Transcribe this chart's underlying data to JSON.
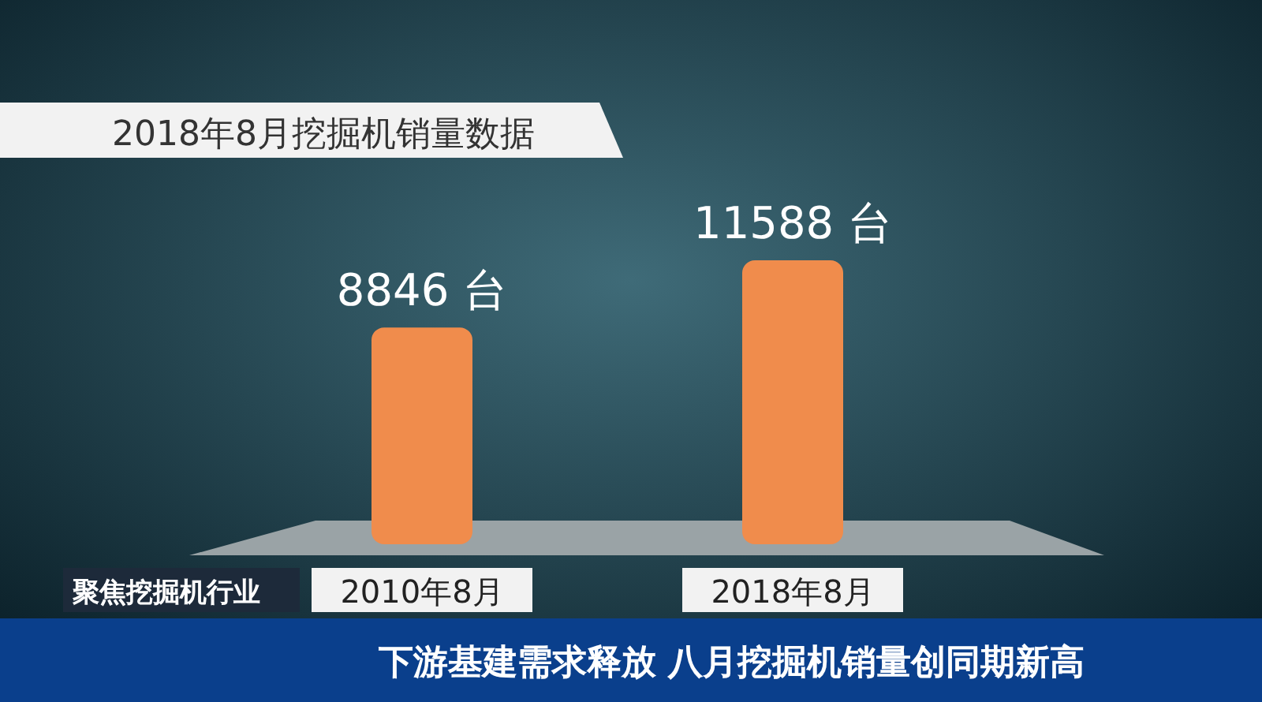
{
  "chart_data": {
    "type": "bar",
    "title": "2018年8月挖掘机销量数据",
    "categories": [
      "2010年8月",
      "2018年8月"
    ],
    "values": [
      8846,
      11588
    ],
    "value_labels": [
      "8846 台",
      "11588 台"
    ],
    "color": "#f08c4c",
    "annotations": [
      "聚焦挖掘机行业",
      "下游基建需求释放 八月挖掘机销量创同期新高"
    ]
  }
}
